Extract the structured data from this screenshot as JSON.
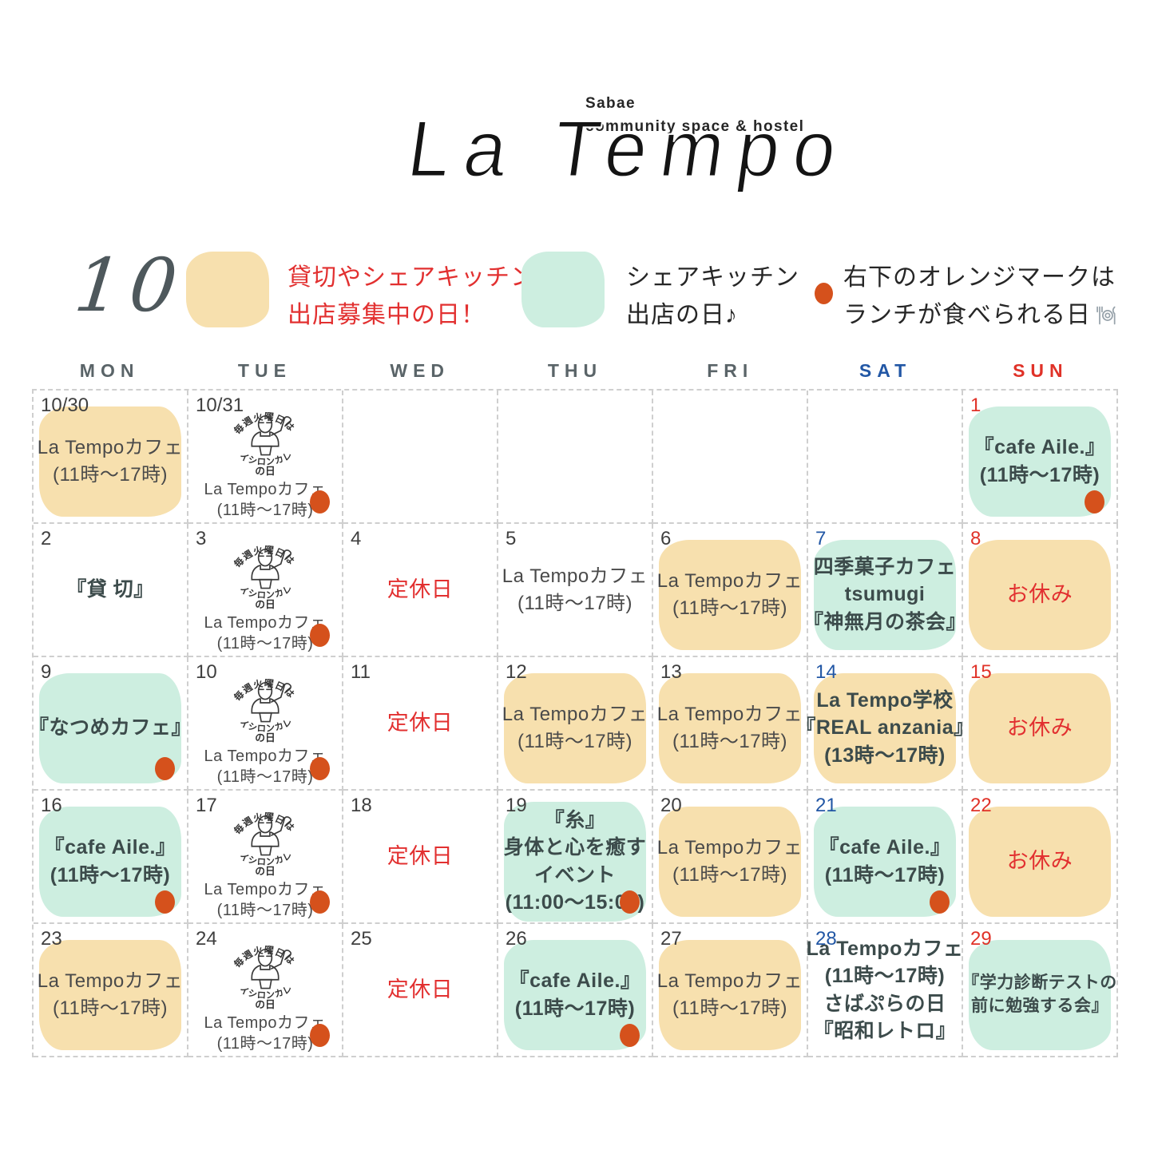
{
  "brand": {
    "tagline_line1": "Sabae",
    "tagline_line2": "community space & hostel",
    "logo_text": "La Tempo"
  },
  "month": "10",
  "legend": {
    "orange_line1": "貸切やシェアキッチン",
    "orange_line2": "出店募集中の日！",
    "mint_line1": "シェアキッチン",
    "mint_line2": "出店の日♪",
    "dot_line1": "右下のオレンジマークは",
    "dot_line2": "ランチが食べられる日",
    "dot_icon": "plate-fork-knife-icon"
  },
  "colors": {
    "orange_bubble": "#f7e0ae",
    "mint_bubble": "#cdeee0",
    "lunch_dot": "#d5511c",
    "red_text": "#e23030",
    "sat_blue": "#2257a5",
    "sun_red": "#e03228"
  },
  "weekday_headers": [
    "MON",
    "TUE",
    "WED",
    "THU",
    "FRI",
    "SAT",
    "SUN"
  ],
  "tuesday_stamp": {
    "arc_top": "毎週火曜日は",
    "arc_bottom": "タイシロンカレー",
    "day_suffix": "の日"
  },
  "weeks": [
    [
      {
        "day": "10/30",
        "bubble": "orange",
        "lines": [
          {
            "text": "La Tempoカフェ"
          },
          {
            "text": "(11時〜17時)"
          }
        ]
      },
      {
        "day": "10/31",
        "stamp": true,
        "lines": [
          {
            "text": "La Tempoカフェ"
          },
          {
            "text": "(11時〜17時)"
          }
        ],
        "dot": true
      },
      {},
      {},
      {},
      {},
      {
        "day": "1",
        "dc": "sun",
        "bubble": "mint",
        "lines": [
          {
            "text": "『cafe Aile.』",
            "bold": true
          },
          {
            "text": "(11時〜17時)",
            "bold": true
          }
        ],
        "dot": true
      }
    ],
    [
      {
        "day": "2",
        "lines": [
          {
            "text": "『貸 切』",
            "bold": true
          }
        ]
      },
      {
        "day": "3",
        "stamp": true,
        "lines": [
          {
            "text": "La Tempoカフェ"
          },
          {
            "text": "(11時〜17時)"
          }
        ],
        "dot": true
      },
      {
        "day": "4",
        "lines": [
          {
            "text": "定休日",
            "red": true
          }
        ]
      },
      {
        "day": "5",
        "lines": [
          {
            "text": "La Tempoカフェ"
          },
          {
            "text": "(11時〜17時)"
          }
        ]
      },
      {
        "day": "6",
        "bubble": "orange",
        "lines": [
          {
            "text": "La Tempoカフェ"
          },
          {
            "text": "(11時〜17時)"
          }
        ]
      },
      {
        "day": "7",
        "dc": "sat",
        "bubble": "mint",
        "lines": [
          {
            "text": "四季菓子カフェ",
            "bold": true
          },
          {
            "text": "tsumugi",
            "bold": true
          },
          {
            "text": "『神無月の茶会』",
            "bold": true
          }
        ]
      },
      {
        "day": "8",
        "dc": "sun",
        "bubble": "orange",
        "lines": [
          {
            "text": "お休み",
            "red": true
          }
        ]
      }
    ],
    [
      {
        "day": "9",
        "bubble": "mint",
        "lines": [
          {
            "text": "『なつめカフェ』",
            "bold": true
          }
        ],
        "dot": true
      },
      {
        "day": "10",
        "stamp": true,
        "lines": [
          {
            "text": "La Tempoカフェ"
          },
          {
            "text": "(11時〜17時)"
          }
        ],
        "dot": true
      },
      {
        "day": "11",
        "lines": [
          {
            "text": "定休日",
            "red": true
          }
        ]
      },
      {
        "day": "12",
        "bubble": "orange",
        "lines": [
          {
            "text": "La Tempoカフェ"
          },
          {
            "text": "(11時〜17時)"
          }
        ]
      },
      {
        "day": "13",
        "bubble": "orange",
        "lines": [
          {
            "text": "La Tempoカフェ"
          },
          {
            "text": "(11時〜17時)"
          }
        ]
      },
      {
        "day": "14",
        "dc": "sat",
        "bubble": "orange",
        "lines": [
          {
            "text": "La Tempo学校",
            "bold": true
          },
          {
            "text": "『REAL anzania』",
            "bold": true
          },
          {
            "text": "(13時〜17時)",
            "bold": true
          }
        ]
      },
      {
        "day": "15",
        "dc": "sun",
        "bubble": "orange",
        "lines": [
          {
            "text": "お休み",
            "red": true
          }
        ]
      }
    ],
    [
      {
        "day": "16",
        "bubble": "mint",
        "lines": [
          {
            "text": "『cafe Aile.』",
            "bold": true
          },
          {
            "text": "(11時〜17時)",
            "bold": true
          }
        ],
        "dot": true
      },
      {
        "day": "17",
        "stamp": true,
        "lines": [
          {
            "text": "La Tempoカフェ"
          },
          {
            "text": "(11時〜17時)"
          }
        ],
        "dot": true
      },
      {
        "day": "18",
        "lines": [
          {
            "text": "定休日",
            "red": true
          }
        ]
      },
      {
        "day": "19",
        "bubble": "mint",
        "lines": [
          {
            "text": "『糸』",
            "bold": true
          },
          {
            "text": "身体と心を癒す",
            "bold": true
          },
          {
            "text": "イベント",
            "bold": true
          },
          {
            "text": "(11:00〜15:00)",
            "bold": true
          }
        ],
        "dot": true
      },
      {
        "day": "20",
        "bubble": "orange",
        "lines": [
          {
            "text": "La Tempoカフェ"
          },
          {
            "text": "(11時〜17時)"
          }
        ]
      },
      {
        "day": "21",
        "dc": "sat",
        "bubble": "mint",
        "lines": [
          {
            "text": "『cafe Aile.』",
            "bold": true
          },
          {
            "text": "(11時〜17時)",
            "bold": true
          }
        ],
        "dot": true
      },
      {
        "day": "22",
        "dc": "sun",
        "bubble": "orange",
        "lines": [
          {
            "text": "お休み",
            "red": true
          }
        ]
      }
    ],
    [
      {
        "day": "23",
        "bubble": "orange",
        "lines": [
          {
            "text": "La Tempoカフェ"
          },
          {
            "text": "(11時〜17時)"
          }
        ]
      },
      {
        "day": "24",
        "stamp": true,
        "lines": [
          {
            "text": "La Tempoカフェ"
          },
          {
            "text": "(11時〜17時)"
          }
        ],
        "dot": true
      },
      {
        "day": "25",
        "lines": [
          {
            "text": "定休日",
            "red": true
          }
        ]
      },
      {
        "day": "26",
        "bubble": "mint",
        "lines": [
          {
            "text": "『cafe Aile.』",
            "bold": true
          },
          {
            "text": "(11時〜17時)",
            "bold": true
          }
        ],
        "dot": true
      },
      {
        "day": "27",
        "bubble": "orange",
        "lines": [
          {
            "text": "La Tempoカフェ"
          },
          {
            "text": "(11時〜17時)"
          }
        ]
      },
      {
        "day": "28",
        "dc": "sat",
        "lines": [
          {
            "text": "La Tempoカフェ",
            "bold": true
          },
          {
            "text": "(11時〜17時)",
            "bold": true
          },
          {
            "text": "さばぷらの日",
            "bold": true
          },
          {
            "text": "『昭和レトロ』",
            "bold": true
          }
        ]
      },
      {
        "day": "29",
        "dc": "sun",
        "bubble": "mint",
        "lines": [
          {
            "text": "『学力診断テストの",
            "bold": true,
            "small": true
          },
          {
            "text": "前に勉強する会』",
            "bold": true,
            "small": true
          }
        ]
      }
    ]
  ]
}
